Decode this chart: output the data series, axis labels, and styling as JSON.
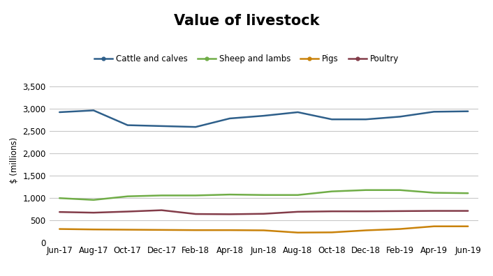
{
  "title": "Value of livestock",
  "ylabel": "$ (millions)",
  "x_labels": [
    "Jun-17",
    "Aug-17",
    "Oct-17",
    "Dec-17",
    "Feb-18",
    "Apr-18",
    "Jun-18",
    "Aug-18",
    "Oct-18",
    "Dec-18",
    "Feb-19",
    "Apr-19",
    "Jun-19"
  ],
  "series": [
    {
      "label": "Cattle and calves",
      "color": "#2e5f8a",
      "values": [
        2920,
        2960,
        2630,
        2610,
        2590,
        2780,
        2840,
        2920,
        2760,
        2760,
        2820,
        2930,
        2940
      ]
    },
    {
      "label": "Sheep and lambs",
      "color": "#70ad47",
      "values": [
        1000,
        960,
        1040,
        1060,
        1060,
        1080,
        1070,
        1070,
        1150,
        1180,
        1180,
        1120,
        1110
      ]
    },
    {
      "label": "Pigs",
      "color": "#c9820a",
      "values": [
        310,
        300,
        295,
        290,
        285,
        285,
        280,
        230,
        235,
        280,
        310,
        370,
        370
      ]
    },
    {
      "label": "Poultry",
      "color": "#833c49",
      "values": [
        690,
        675,
        700,
        730,
        645,
        640,
        650,
        695,
        705,
        705,
        710,
        715,
        715
      ]
    }
  ],
  "ylim": [
    0,
    3700
  ],
  "yticks": [
    0,
    500,
    1000,
    1500,
    2000,
    2500,
    3000,
    3500
  ],
  "background_color": "#ffffff",
  "grid_color": "#c8c8c8",
  "title_fontsize": 15,
  "legend_fontsize": 8.5,
  "axis_fontsize": 8.5,
  "line_width": 1.8
}
